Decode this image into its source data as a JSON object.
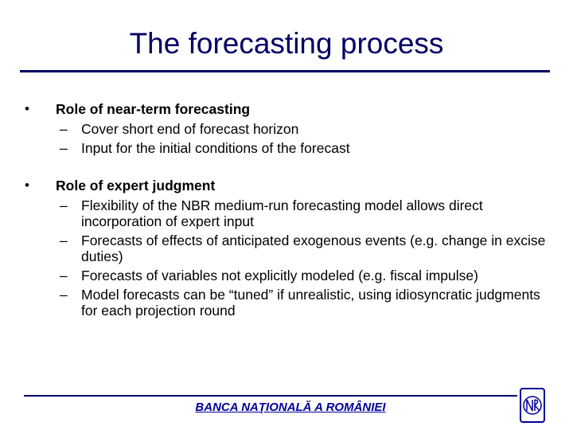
{
  "header": {
    "title": "The forecasting process"
  },
  "bullets": [
    {
      "text": "Role of near-term forecasting",
      "items": [
        "Cover short end of forecast horizon",
        "Input for the initial conditions of the forecast"
      ]
    },
    {
      "text": "Role of expert judgment",
      "items": [
        "Flexibility of the NBR medium-run forecasting model allows direct incorporation of expert input",
        "Forecasts of effects of anticipated exogenous events (e.g. change in excise duties)",
        "Forecasts of variables not explicitly modeled (e.g. fiscal impulse)",
        "Model forecasts can be “tuned” if unrealistic, using idiosyncratic judgments for each projection round"
      ]
    }
  ],
  "footer": {
    "text": "BANCA NAŢIONALĂ A ROMÂNIEI"
  }
}
